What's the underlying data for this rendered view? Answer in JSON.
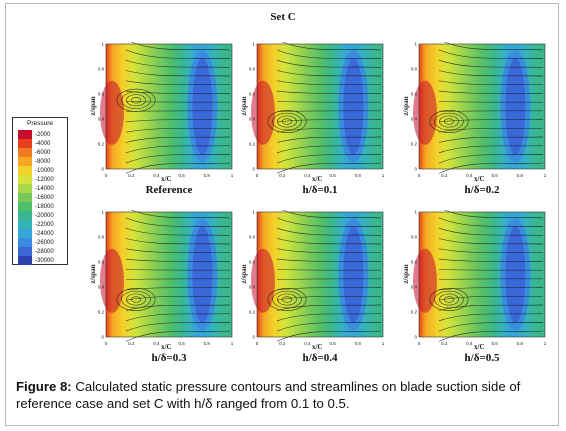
{
  "set_title": "Set C",
  "legend": {
    "title": "Pressure",
    "items": [
      {
        "label": "-2000",
        "color": "#c8102e"
      },
      {
        "label": "-4000",
        "color": "#e8401a"
      },
      {
        "label": "-6000",
        "color": "#f27a22"
      },
      {
        "label": "-8000",
        "color": "#f5a623"
      },
      {
        "label": "-10000",
        "color": "#f2d22b"
      },
      {
        "label": "-12000",
        "color": "#d6e33a"
      },
      {
        "label": "-14000",
        "color": "#a8d84a"
      },
      {
        "label": "-16000",
        "color": "#79c95a"
      },
      {
        "label": "-18000",
        "color": "#4fbf6a"
      },
      {
        "label": "-20000",
        "color": "#3bb68f"
      },
      {
        "label": "-22000",
        "color": "#35b4b8"
      },
      {
        "label": "-24000",
        "color": "#35a6d6"
      },
      {
        "label": "-26000",
        "color": "#3a8ae0"
      },
      {
        "label": "-28000",
        "color": "#3a66d8"
      },
      {
        "label": "-30000",
        "color": "#2e3fb0"
      }
    ]
  },
  "axes": {
    "x_title": "x/C",
    "y_title": "z/span",
    "x_ticks": [
      "0",
      "0.2",
      "0.4",
      "0.6",
      "0.8",
      "1"
    ],
    "y_ticks": [
      "0",
      "0.2",
      "0.4",
      "0.6",
      "0.8",
      "1"
    ]
  },
  "panels": [
    {
      "caption": "Reference"
    },
    {
      "caption": "h/δ=0.1"
    },
    {
      "caption": "h/δ=0.2"
    },
    {
      "caption": "h/δ=0.3"
    },
    {
      "caption": "h/δ=0.4"
    },
    {
      "caption": "h/δ=0.5"
    }
  ],
  "caption": {
    "label": "Figure 8:",
    "text": "Calculated static pressure contours and streamlines on blade suction side of reference case and set C with h/δ ranged from 0.1 to 0.5."
  }
}
